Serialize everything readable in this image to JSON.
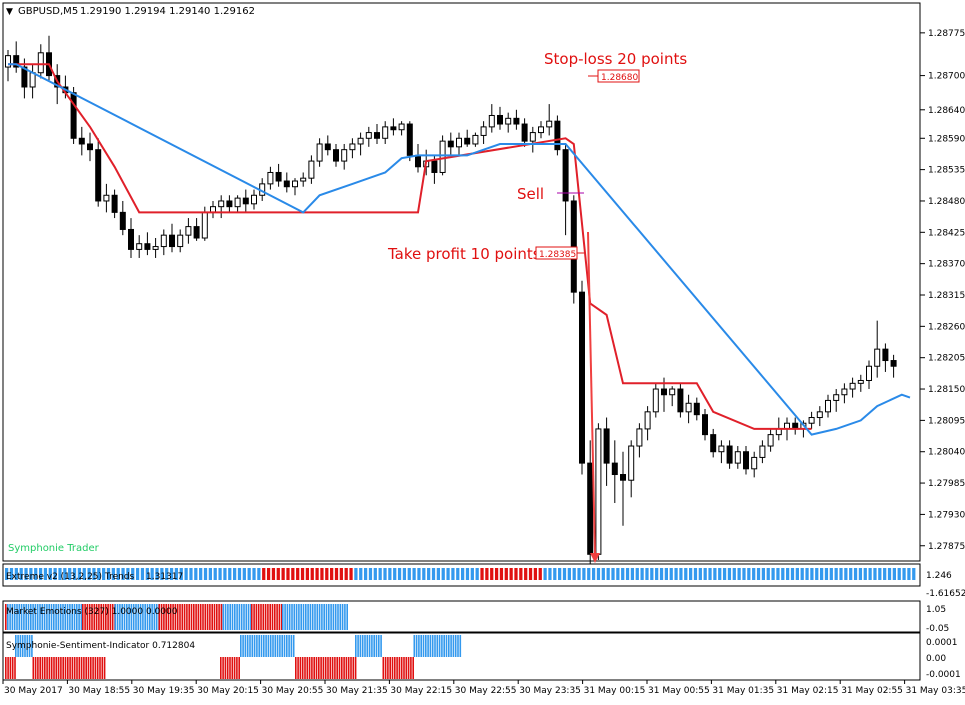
{
  "header": {
    "symbol": "GBPUSD,M5",
    "ohlc": "1.29190 1.29194 1.29140 1.29162",
    "menu_icon": "triangle-down-icon"
  },
  "colors": {
    "bull_bear_red": "#e01010",
    "bull_bear_blue": "#3399ee",
    "stop_line": "#e0202a",
    "trail_line": "#2a8ae8",
    "watermark": "#22cc66",
    "sell_marker": "#aa00aa"
  },
  "chart_data": {
    "type": "candlestick",
    "symbol": "GBPUSD",
    "timeframe": "M5",
    "ylim": [
      1.2785,
      1.2878
    ],
    "y_ticks": [
      "1.28775",
      "1.28700",
      "1.28640",
      "1.28590",
      "1.28535",
      "1.28480",
      "1.28425",
      "1.28370",
      "1.28315",
      "1.28260",
      "1.28205",
      "1.28150",
      "1.28095",
      "1.28040",
      "1.27985",
      "1.27930",
      "1.27875"
    ],
    "x_ticks": [
      "30 May 2017",
      "30 May 18:55",
      "30 May 19:35",
      "30 May 20:15",
      "30 May 20:55",
      "30 May 21:35",
      "30 May 22:15",
      "30 May 22:55",
      "30 May 23:35",
      "31 May 00:15",
      "31 May 00:55",
      "31 May 01:35",
      "31 May 02:15",
      "31 May 02:55",
      "31 May 03:35"
    ],
    "candles": [
      [
        1.28715,
        1.28745,
        1.2869,
        1.28735
      ],
      [
        1.28735,
        1.2876,
        1.28705,
        1.28715
      ],
      [
        1.28715,
        1.2873,
        1.2866,
        1.2868
      ],
      [
        1.2868,
        1.2872,
        1.2866,
        1.28705
      ],
      [
        1.28705,
        1.28755,
        1.28695,
        1.2874
      ],
      [
        1.2874,
        1.2877,
        1.2869,
        1.287
      ],
      [
        1.287,
        1.2872,
        1.2865,
        1.2868
      ],
      [
        1.2868,
        1.287,
        1.2866,
        1.2867
      ],
      [
        1.2867,
        1.2868,
        1.2858,
        1.2859
      ],
      [
        1.2859,
        1.2861,
        1.2856,
        1.2858
      ],
      [
        1.2858,
        1.286,
        1.2855,
        1.2857
      ],
      [
        1.2857,
        1.2859,
        1.2847,
        1.2848
      ],
      [
        1.2848,
        1.2851,
        1.2846,
        1.2849
      ],
      [
        1.2849,
        1.285,
        1.2845,
        1.2846
      ],
      [
        1.2846,
        1.2848,
        1.2842,
        1.2843
      ],
      [
        1.2843,
        1.2845,
        1.2838,
        1.28395
      ],
      [
        1.28395,
        1.2842,
        1.2838,
        1.28405
      ],
      [
        1.28405,
        1.28425,
        1.28385,
        1.28395
      ],
      [
        1.28395,
        1.28415,
        1.2838,
        1.284
      ],
      [
        1.284,
        1.2843,
        1.28385,
        1.2842
      ],
      [
        1.2842,
        1.2844,
        1.2839,
        1.284
      ],
      [
        1.284,
        1.2843,
        1.2839,
        1.2842
      ],
      [
        1.2842,
        1.2845,
        1.28405,
        1.28435
      ],
      [
        1.28435,
        1.2845,
        1.2841,
        1.28415
      ],
      [
        1.28415,
        1.2847,
        1.2841,
        1.2846
      ],
      [
        1.2846,
        1.2848,
        1.2845,
        1.2847
      ],
      [
        1.2847,
        1.2849,
        1.2845,
        1.2848
      ],
      [
        1.2848,
        1.2849,
        1.2846,
        1.2847
      ],
      [
        1.2847,
        1.2849,
        1.2846,
        1.28485
      ],
      [
        1.28485,
        1.285,
        1.2846,
        1.28475
      ],
      [
        1.28475,
        1.285,
        1.28465,
        1.2849
      ],
      [
        1.2849,
        1.2852,
        1.2848,
        1.2851
      ],
      [
        1.2851,
        1.2854,
        1.285,
        1.2853
      ],
      [
        1.2853,
        1.28545,
        1.28505,
        1.28515
      ],
      [
        1.28515,
        1.2853,
        1.28495,
        1.28505
      ],
      [
        1.28505,
        1.2852,
        1.2849,
        1.28515
      ],
      [
        1.28515,
        1.2853,
        1.28505,
        1.2852
      ],
      [
        1.2852,
        1.2856,
        1.2851,
        1.2855
      ],
      [
        1.2855,
        1.2859,
        1.2854,
        1.2858
      ],
      [
        1.2858,
        1.28595,
        1.2856,
        1.2857
      ],
      [
        1.2857,
        1.2858,
        1.2854,
        1.2855
      ],
      [
        1.2855,
        1.2858,
        1.28535,
        1.2857
      ],
      [
        1.2857,
        1.2859,
        1.28555,
        1.2858
      ],
      [
        1.2858,
        1.286,
        1.2856,
        1.2859
      ],
      [
        1.2859,
        1.2861,
        1.28575,
        1.286
      ],
      [
        1.286,
        1.28615,
        1.2858,
        1.2859
      ],
      [
        1.2859,
        1.2862,
        1.2858,
        1.2861
      ],
      [
        1.2861,
        1.28625,
        1.28595,
        1.28605
      ],
      [
        1.28605,
        1.2862,
        1.28595,
        1.28615
      ],
      [
        1.28615,
        1.2862,
        1.2855,
        1.2856
      ],
      [
        1.2856,
        1.2858,
        1.2853,
        1.2854
      ],
      [
        1.2854,
        1.2857,
        1.28525,
        1.2855
      ],
      [
        1.2855,
        1.2856,
        1.2851,
        1.2853
      ],
      [
        1.2853,
        1.28595,
        1.28525,
        1.28585
      ],
      [
        1.28585,
        1.286,
        1.2856,
        1.28575
      ],
      [
        1.28575,
        1.286,
        1.2856,
        1.2859
      ],
      [
        1.2859,
        1.28605,
        1.28575,
        1.2858
      ],
      [
        1.2858,
        1.286,
        1.28575,
        1.28595
      ],
      [
        1.28595,
        1.2862,
        1.2858,
        1.2861
      ],
      [
        1.2861,
        1.2865,
        1.286,
        1.2863
      ],
      [
        1.2863,
        1.28645,
        1.28605,
        1.28615
      ],
      [
        1.28615,
        1.28635,
        1.286,
        1.28625
      ],
      [
        1.28625,
        1.2864,
        1.28605,
        1.28615
      ],
      [
        1.28615,
        1.28625,
        1.28575,
        1.28585
      ],
      [
        1.28585,
        1.2861,
        1.28565,
        1.286
      ],
      [
        1.286,
        1.2862,
        1.2859,
        1.2861
      ],
      [
        1.2861,
        1.2865,
        1.28595,
        1.2862
      ],
      [
        1.2862,
        1.2863,
        1.2856,
        1.2857
      ],
      [
        1.2857,
        1.2858,
        1.2842,
        1.2848
      ],
      [
        1.2848,
        1.2849,
        1.283,
        1.2832
      ],
      [
        1.2832,
        1.2834,
        1.28,
        1.2802
      ],
      [
        1.2802,
        1.2806,
        1.2784,
        1.2786
      ],
      [
        1.2786,
        1.2809,
        1.2785,
        1.2808
      ],
      [
        1.2808,
        1.281,
        1.2798,
        1.2802
      ],
      [
        1.2802,
        1.2806,
        1.2795,
        1.28
      ],
      [
        1.28,
        1.2804,
        1.2791,
        1.2799
      ],
      [
        1.2799,
        1.2806,
        1.2796,
        1.2805
      ],
      [
        1.2805,
        1.2809,
        1.2803,
        1.2808
      ],
      [
        1.2808,
        1.2812,
        1.2806,
        1.2811
      ],
      [
        1.2811,
        1.2816,
        1.281,
        1.2815
      ],
      [
        1.2815,
        1.2817,
        1.2811,
        1.2814
      ],
      [
        1.2814,
        1.28155,
        1.2812,
        1.2815
      ],
      [
        1.2815,
        1.2816,
        1.281,
        1.2811
      ],
      [
        1.2811,
        1.2814,
        1.2809,
        1.28125
      ],
      [
        1.28125,
        1.28135,
        1.28095,
        1.28105
      ],
      [
        1.28105,
        1.28115,
        1.2806,
        1.2807
      ],
      [
        1.2807,
        1.2808,
        1.2803,
        1.2804
      ],
      [
        1.2804,
        1.2806,
        1.2802,
        1.2805
      ],
      [
        1.2805,
        1.2806,
        1.2801,
        1.2802
      ],
      [
        1.2802,
        1.2805,
        1.2801,
        1.2804
      ],
      [
        1.2804,
        1.2805,
        1.28,
        1.2801
      ],
      [
        1.2801,
        1.2804,
        1.27995,
        1.2803
      ],
      [
        1.2803,
        1.2806,
        1.2802,
        1.2805
      ],
      [
        1.2805,
        1.2808,
        1.2804,
        1.2807
      ],
      [
        1.2807,
        1.281,
        1.2806,
        1.2808
      ],
      [
        1.2808,
        1.281,
        1.2806,
        1.2809
      ],
      [
        1.2809,
        1.281,
        1.2807,
        1.2808
      ],
      [
        1.2808,
        1.28095,
        1.28065,
        1.2809
      ],
      [
        1.2809,
        1.2811,
        1.2808,
        1.281
      ],
      [
        1.281,
        1.2812,
        1.28085,
        1.2811
      ],
      [
        1.2811,
        1.2814,
        1.281,
        1.2813
      ],
      [
        1.2813,
        1.2815,
        1.2811,
        1.2814
      ],
      [
        1.2814,
        1.2816,
        1.28125,
        1.2815
      ],
      [
        1.2815,
        1.2817,
        1.28135,
        1.2816
      ],
      [
        1.2816,
        1.28175,
        1.28145,
        1.28165
      ],
      [
        1.28165,
        1.282,
        1.2815,
        1.2819
      ],
      [
        1.2819,
        1.2827,
        1.2817,
        1.2822
      ],
      [
        1.2822,
        1.2823,
        1.2818,
        1.282
      ],
      [
        1.282,
        1.2821,
        1.2817,
        1.2819
      ]
    ],
    "stop_line": [
      [
        0,
        1.2872
      ],
      [
        5,
        1.2872
      ],
      [
        6,
        1.2869
      ],
      [
        10,
        1.2861
      ],
      [
        13,
        1.2854
      ],
      [
        16,
        1.2846
      ],
      [
        50,
        1.2846
      ],
      [
        51,
        1.2855
      ],
      [
        68,
        1.2859
      ],
      [
        69,
        1.2858
      ],
      [
        71,
        1.283
      ],
      [
        73,
        1.2828
      ],
      [
        75,
        1.2816
      ],
      [
        84,
        1.2816
      ],
      [
        86,
        1.2811
      ],
      [
        91,
        1.2808
      ],
      [
        98,
        1.2808
      ]
    ],
    "trail_line": [
      [
        0,
        1.2872
      ],
      [
        1,
        1.2872
      ],
      [
        36,
        1.2846
      ],
      [
        38,
        1.2849
      ],
      [
        42,
        1.2851
      ],
      [
        46,
        1.2853
      ],
      [
        48,
        1.28555
      ],
      [
        50,
        1.2856
      ],
      [
        56,
        1.2856
      ],
      [
        58,
        1.2857
      ],
      [
        60,
        1.2858
      ],
      [
        68,
        1.2858
      ],
      [
        98,
        1.2807
      ],
      [
        101,
        1.2808
      ],
      [
        104,
        1.28095
      ],
      [
        106,
        1.2812
      ],
      [
        109,
        1.2814
      ],
      [
        110,
        1.28135
      ]
    ],
    "annotations": {
      "stop_loss": {
        "label": "Stop-loss 20 points",
        "price": "1.28680"
      },
      "sell": {
        "label": "Sell"
      },
      "take_profit": {
        "label": "Take profit 10 points",
        "price": "1.28385"
      }
    },
    "watermark": "Symphonie Trader",
    "indicators": [
      {
        "title": "Extreme v2 (13,2,25) Trends",
        "value": "1.31317",
        "ticks": [
          "1.246",
          "-1.61652"
        ],
        "bars": "bbbbbbbbbbbbbbbbbbbbbbbbbbbbbbbbbbbbbbbbbbbbbbbbbbbbbrrrrrrrrrrrrrrrrrrrbbbbbbbbbbbbbbbbbbbbbbbbbbrrrrrrrrrrrrrbbbbbbbbbbbbbbbbbbbbbbbbbbbbbbbbbbbbbbbbbbbbbbbbbbbbbbbbbbbbbbbbbbbbbbbbbbbbb"
      },
      {
        "title": "Market Emotions (327) 1.0000 0.0000",
        "ticks": [
          "1.05",
          "-0.05"
        ],
        "segments": [
          [
            "r",
            4
          ],
          [
            "b",
            150
          ],
          [
            "r",
            65
          ],
          [
            "b",
            88
          ],
          [
            "r",
            128
          ],
          [
            "b",
            57
          ],
          [
            "r",
            62
          ],
          [
            "b",
            130
          ]
        ]
      },
      {
        "title": "Symphonie-Sentiment-Indicator 0.712804",
        "ticks": [
          "0.0001",
          "0.00",
          "-0.0001"
        ],
        "segments": [
          [
            "r",
            20,
            "dn"
          ],
          [
            "b",
            35,
            "up"
          ],
          [
            "r",
            145,
            "dn"
          ],
          [
            "g",
            230,
            "none"
          ],
          [
            "r",
            40,
            "dn"
          ],
          [
            "b",
            110,
            "up"
          ],
          [
            "r",
            120,
            "dn"
          ],
          [
            "b",
            55,
            "up"
          ],
          [
            "r",
            62,
            "dn"
          ],
          [
            "b",
            95,
            "up"
          ]
        ]
      }
    ]
  }
}
